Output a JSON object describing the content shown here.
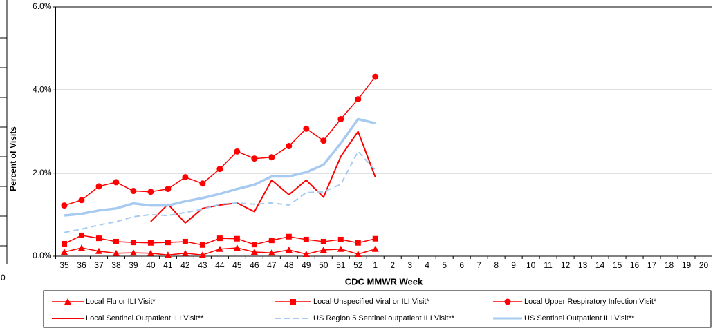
{
  "chart_data": {
    "type": "line",
    "y_label": "Percent of Visits",
    "x_label": "CDC MMWR Week",
    "categories": [
      "35",
      "36",
      "37",
      "38",
      "39",
      "40",
      "41",
      "42",
      "43",
      "44",
      "45",
      "46",
      "47",
      "48",
      "49",
      "50",
      "51",
      "52",
      "1",
      "2",
      "3",
      "4",
      "5",
      "6",
      "7",
      "8",
      "9",
      "10",
      "11",
      "12",
      "13",
      "14",
      "15",
      "16",
      "17",
      "18",
      "19",
      "20"
    ],
    "ylim": [
      0,
      6
    ],
    "yticks": [
      {
        "value": 0,
        "label": "0.0%"
      },
      {
        "value": 2,
        "label": "2.0%"
      },
      {
        "value": 4,
        "label": "4.0%"
      },
      {
        "value": 6,
        "label": "6.0%"
      }
    ],
    "grid": true,
    "legend": "bottom",
    "series": [
      {
        "name": "Local Flu or ILI Visit*",
        "color": "#ff0000",
        "marker": "triangle",
        "dash": "solid",
        "width": 1.5,
        "values": [
          0.1,
          0.2,
          0.12,
          0.07,
          0.08,
          0.07,
          0.03,
          0.07,
          0.03,
          0.17,
          0.2,
          0.1,
          0.08,
          0.15,
          0.05,
          0.15,
          0.17,
          0.05,
          0.17,
          null,
          null,
          null,
          null,
          null,
          null,
          null,
          null,
          null,
          null,
          null,
          null,
          null,
          null,
          null,
          null,
          null,
          null,
          null
        ]
      },
      {
        "name": "Local Unspecified Viral or ILI Visit*",
        "color": "#ff0000",
        "marker": "square",
        "dash": "solid",
        "width": 1.5,
        "values": [
          0.3,
          0.5,
          0.43,
          0.35,
          0.33,
          0.32,
          0.33,
          0.35,
          0.27,
          0.43,
          0.42,
          0.28,
          0.38,
          0.47,
          0.4,
          0.35,
          0.4,
          0.32,
          0.42,
          null,
          null,
          null,
          null,
          null,
          null,
          null,
          null,
          null,
          null,
          null,
          null,
          null,
          null,
          null,
          null,
          null,
          null,
          null
        ]
      },
      {
        "name": "Local Upper Respiratory Infection Visit*",
        "color": "#ff0000",
        "marker": "circle",
        "dash": "solid",
        "width": 1.5,
        "values": [
          1.22,
          1.35,
          1.68,
          1.78,
          1.57,
          1.55,
          1.62,
          1.9,
          1.75,
          2.1,
          2.52,
          2.35,
          2.38,
          2.65,
          3.07,
          2.78,
          3.3,
          3.78,
          4.32,
          null,
          null,
          null,
          null,
          null,
          null,
          null,
          null,
          null,
          null,
          null,
          null,
          null,
          null,
          null,
          null,
          null,
          null,
          null
        ]
      },
      {
        "name": "Local Sentinel Outpatient ILI Visit**",
        "color": "#ff0000",
        "marker": "none",
        "dash": "solid",
        "width": 2,
        "values": [
          null,
          null,
          null,
          null,
          null,
          0.83,
          1.25,
          0.8,
          1.15,
          1.23,
          1.28,
          1.07,
          1.83,
          1.48,
          1.83,
          1.42,
          2.4,
          3.0,
          1.9,
          null,
          null,
          null,
          null,
          null,
          null,
          null,
          null,
          null,
          null,
          null,
          null,
          null,
          null,
          null,
          null,
          null,
          null,
          null
        ]
      },
      {
        "name": "US Region 5 Sentinel outpatient ILI Visit**",
        "color": "#a6caf0",
        "marker": "none",
        "dash": "dashed",
        "width": 2,
        "values": [
          0.57,
          0.65,
          0.75,
          0.83,
          0.95,
          1.0,
          0.98,
          1.05,
          1.13,
          1.25,
          1.28,
          1.25,
          1.28,
          1.23,
          1.53,
          1.55,
          1.73,
          2.52,
          2.07,
          null,
          null,
          null,
          null,
          null,
          null,
          null,
          null,
          null,
          null,
          null,
          null,
          null,
          null,
          null,
          null,
          null,
          null,
          null
        ]
      },
      {
        "name": "US Sentinel Outpatient ILI Visit**",
        "color": "#a6caf0",
        "marker": "none",
        "dash": "solid",
        "width": 3.5,
        "values": [
          0.98,
          1.02,
          1.1,
          1.15,
          1.27,
          1.22,
          1.22,
          1.32,
          1.4,
          1.5,
          1.62,
          1.72,
          1.92,
          1.92,
          2.02,
          2.2,
          2.72,
          3.3,
          3.2,
          null,
          null,
          null,
          null,
          null,
          null,
          null,
          null,
          null,
          null,
          null,
          null,
          null,
          null,
          null,
          null,
          null,
          null,
          null
        ]
      }
    ]
  },
  "fragment": {
    "label": "0"
  }
}
